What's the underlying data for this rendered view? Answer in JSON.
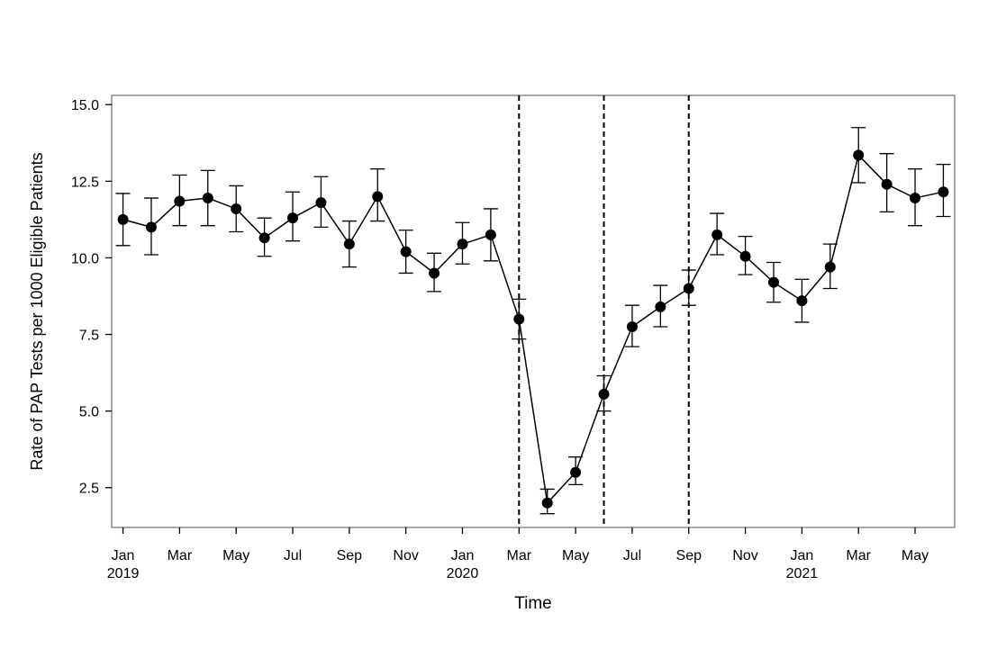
{
  "chart_data": {
    "type": "line",
    "xlabel": "Time",
    "ylabel": "Rate of PAP Tests per 1000 Eligible Patients",
    "ylim": [
      1.2,
      15.3
    ],
    "xlim": [
      -0.4,
      29.4
    ],
    "yticks": [
      "2.5",
      "5.0",
      "7.5",
      "10.0",
      "12.5",
      "15.0"
    ],
    "xticks": [
      {
        "month": "Jan",
        "year": "2019"
      },
      {
        "month": "Mar",
        "year": ""
      },
      {
        "month": "May",
        "year": ""
      },
      {
        "month": "Jul",
        "year": ""
      },
      {
        "month": "Sep",
        "year": ""
      },
      {
        "month": "Nov",
        "year": ""
      },
      {
        "month": "Jan",
        "year": "2020"
      },
      {
        "month": "Mar",
        "year": ""
      },
      {
        "month": "May",
        "year": ""
      },
      {
        "month": "Jul",
        "year": ""
      },
      {
        "month": "Sep",
        "year": ""
      },
      {
        "month": "Nov",
        "year": ""
      },
      {
        "month": "Jan",
        "year": "2021"
      },
      {
        "month": "Mar",
        "year": ""
      },
      {
        "month": "May",
        "year": ""
      }
    ],
    "grid": false,
    "error_bars": true,
    "series": [
      {
        "x": [
          "2019-01",
          "2019-02",
          "2019-03",
          "2019-04",
          "2019-05",
          "2019-06",
          "2019-07",
          "2019-08",
          "2019-09",
          "2019-10",
          "2019-11",
          "2019-12",
          "2020-01",
          "2020-02",
          "2020-03",
          "2020-04",
          "2020-05",
          "2020-06",
          "2020-07",
          "2020-08",
          "2020-09",
          "2020-10",
          "2020-11",
          "2020-12",
          "2021-01",
          "2021-02",
          "2021-03",
          "2021-04",
          "2021-05",
          "2021-06"
        ],
        "values": [
          11.25,
          11.0,
          11.85,
          11.95,
          11.6,
          10.65,
          11.3,
          11.8,
          10.45,
          12.0,
          10.2,
          9.5,
          10.45,
          10.75,
          8.0,
          2.0,
          3.0,
          5.55,
          7.75,
          8.4,
          9.0,
          10.75,
          10.05,
          9.2,
          8.6,
          9.7,
          13.35,
          12.4,
          11.95,
          12.15
        ],
        "lower": [
          10.4,
          10.1,
          11.05,
          11.05,
          10.85,
          10.05,
          10.55,
          11.0,
          9.7,
          11.2,
          9.5,
          8.9,
          9.8,
          9.9,
          7.35,
          1.65,
          2.6,
          5.0,
          7.1,
          7.75,
          8.45,
          10.1,
          9.45,
          8.55,
          7.9,
          9.0,
          12.45,
          11.5,
          11.05,
          11.35
        ],
        "upper": [
          12.1,
          11.95,
          12.7,
          12.85,
          12.35,
          11.3,
          12.15,
          12.65,
          11.2,
          12.9,
          10.9,
          10.15,
          11.15,
          11.6,
          8.65,
          2.45,
          3.5,
          6.15,
          8.45,
          9.1,
          9.6,
          11.45,
          10.7,
          9.85,
          9.3,
          10.45,
          14.25,
          13.4,
          12.9,
          13.05
        ]
      }
    ],
    "vertical_lines": [
      {
        "x": "2020-03",
        "style": "dashed"
      },
      {
        "x": "2020-06",
        "style": "dashed"
      },
      {
        "x": "2020-09",
        "style": "dashed"
      }
    ]
  }
}
